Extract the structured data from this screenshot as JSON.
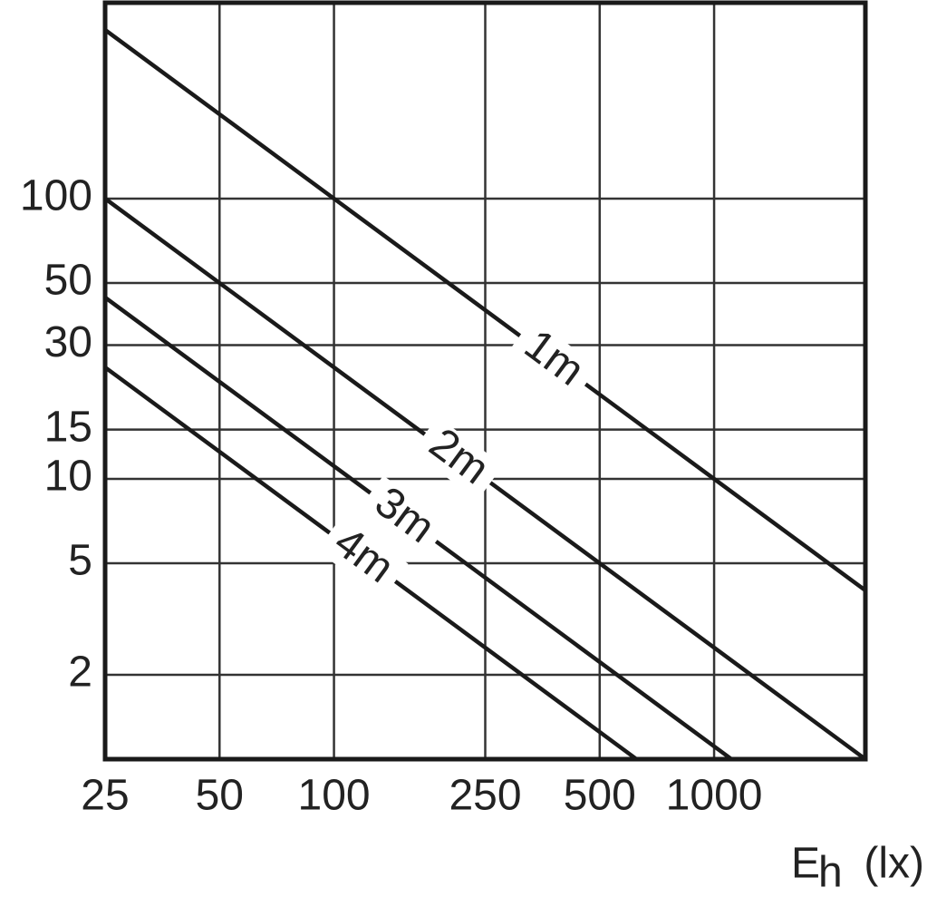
{
  "chart_data": {
    "type": "line",
    "x_label": {
      "main": "E",
      "sub": "h",
      "unit": "(lx)"
    },
    "xlim": [
      25,
      2500
    ],
    "ylim": [
      1,
      500
    ],
    "log_x": true,
    "log_y": true,
    "grid": true,
    "xticks": [
      25,
      50,
      100,
      250,
      500,
      1000
    ],
    "yticks": [
      2,
      5,
      10,
      15,
      30,
      50,
      100
    ],
    "series": [
      {
        "name": "1m",
        "color": "#1a1a1a",
        "x": [
          25,
          2500
        ],
        "values": [
          400,
          4
        ]
      },
      {
        "name": "2m",
        "color": "#1a1a1a",
        "x": [
          25,
          2500
        ],
        "values": [
          100,
          1
        ]
      },
      {
        "name": "3m",
        "color": "#1a1a1a",
        "x": [
          25,
          1111
        ],
        "values": [
          44.4,
          1
        ]
      },
      {
        "name": "4m",
        "color": "#1a1a1a",
        "x": [
          25,
          625
        ],
        "values": [
          25,
          1
        ]
      }
    ]
  }
}
